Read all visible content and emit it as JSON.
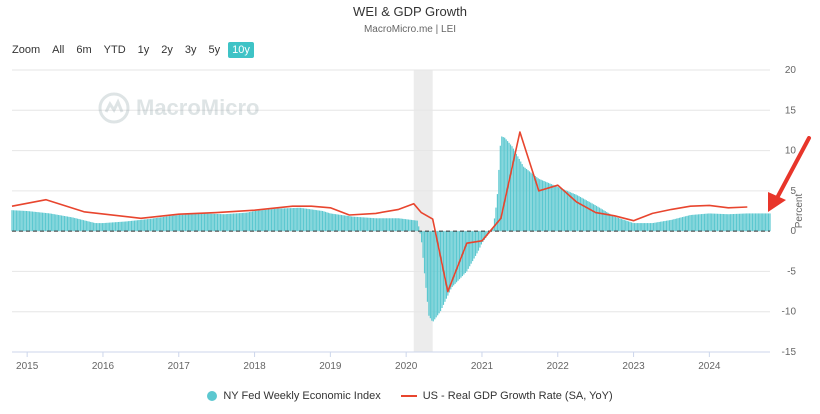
{
  "header": {
    "title": "WEI & GDP Growth",
    "subtitle": "MacroMicro.me | LEI"
  },
  "zoom": {
    "label": "Zoom",
    "options": [
      "All",
      "6m",
      "YTD",
      "1y",
      "2y",
      "3y",
      "5y",
      "10y"
    ],
    "selected": "10y"
  },
  "watermark": {
    "text": "MacroMicro"
  },
  "colors": {
    "wei": "#5cc8d0",
    "gdp": "#e8452e",
    "accent": "#3ec3c6",
    "recession": "#ececec",
    "arrow": "#e8352a"
  },
  "chart_data": {
    "type": "bar",
    "title": "WEI & GDP Growth",
    "ylabel": "Percent",
    "ylim": [
      -15,
      20
    ],
    "yticks": [
      20,
      15,
      10,
      5,
      0,
      -5,
      -10,
      -15
    ],
    "xlim": [
      2014.8,
      2024.8
    ],
    "xticks": [
      "2015",
      "2016",
      "2017",
      "2018",
      "2019",
      "2020",
      "2021",
      "2022",
      "2023",
      "2024"
    ],
    "shaded_region": [
      2020.1,
      2020.35
    ],
    "legend_position": "bottom",
    "series": [
      {
        "name": "NY Fed Weekly Economic Index",
        "type": "bar",
        "points": [
          [
            2014.8,
            2.6
          ],
          [
            2015.0,
            2.5
          ],
          [
            2015.3,
            2.2
          ],
          [
            2015.6,
            1.7
          ],
          [
            2015.9,
            1.0
          ],
          [
            2016.0,
            1.0
          ],
          [
            2016.3,
            1.2
          ],
          [
            2016.6,
            1.5
          ],
          [
            2016.9,
            1.9
          ],
          [
            2017.0,
            2.0
          ],
          [
            2017.3,
            2.2
          ],
          [
            2017.6,
            2.1
          ],
          [
            2017.9,
            2.3
          ],
          [
            2018.0,
            2.5
          ],
          [
            2018.3,
            2.8
          ],
          [
            2018.6,
            2.9
          ],
          [
            2018.9,
            2.5
          ],
          [
            2019.0,
            2.2
          ],
          [
            2019.3,
            1.8
          ],
          [
            2019.6,
            1.6
          ],
          [
            2019.9,
            1.6
          ],
          [
            2020.15,
            1.3
          ],
          [
            2020.2,
            -1.0
          ],
          [
            2020.25,
            -6.0
          ],
          [
            2020.3,
            -10.5
          ],
          [
            2020.35,
            -11.3
          ],
          [
            2020.45,
            -10.0
          ],
          [
            2020.6,
            -7.0
          ],
          [
            2020.8,
            -5.0
          ],
          [
            2020.95,
            -2.5
          ],
          [
            2021.0,
            -1.5
          ],
          [
            2021.15,
            0.5
          ],
          [
            2021.2,
            4.0
          ],
          [
            2021.25,
            11.8
          ],
          [
            2021.3,
            11.6
          ],
          [
            2021.4,
            10.5
          ],
          [
            2021.55,
            8.0
          ],
          [
            2021.75,
            6.5
          ],
          [
            2022.0,
            5.5
          ],
          [
            2022.25,
            4.5
          ],
          [
            2022.5,
            3.2
          ],
          [
            2022.75,
            1.8
          ],
          [
            2023.0,
            1.0
          ],
          [
            2023.25,
            1.0
          ],
          [
            2023.5,
            1.4
          ],
          [
            2023.75,
            2.0
          ],
          [
            2024.0,
            2.2
          ],
          [
            2024.25,
            2.1
          ],
          [
            2024.5,
            2.2
          ],
          [
            2024.8,
            2.2
          ]
        ]
      },
      {
        "name": "US - Real GDP Growth Rate (SA, YoY)",
        "type": "line",
        "points": [
          [
            2014.8,
            3.1
          ],
          [
            2015.25,
            3.9
          ],
          [
            2015.75,
            2.4
          ],
          [
            2016.5,
            1.6
          ],
          [
            2017.0,
            2.1
          ],
          [
            2017.5,
            2.3
          ],
          [
            2018.0,
            2.6
          ],
          [
            2018.5,
            3.1
          ],
          [
            2018.75,
            3.1
          ],
          [
            2019.0,
            2.9
          ],
          [
            2019.25,
            2.0
          ],
          [
            2019.6,
            2.2
          ],
          [
            2019.9,
            2.7
          ],
          [
            2020.1,
            3.4
          ],
          [
            2020.2,
            2.3
          ],
          [
            2020.35,
            1.5
          ],
          [
            2020.55,
            -7.5
          ],
          [
            2020.8,
            -1.5
          ],
          [
            2021.0,
            -1.2
          ],
          [
            2021.25,
            1.6
          ],
          [
            2021.5,
            12.3
          ],
          [
            2021.75,
            5.0
          ],
          [
            2022.0,
            5.7
          ],
          [
            2022.25,
            3.6
          ],
          [
            2022.5,
            2.3
          ],
          [
            2022.75,
            1.9
          ],
          [
            2023.0,
            1.3
          ],
          [
            2023.25,
            2.2
          ],
          [
            2023.5,
            2.7
          ],
          [
            2023.75,
            3.1
          ],
          [
            2024.0,
            3.2
          ],
          [
            2024.25,
            2.9
          ],
          [
            2024.5,
            3.0
          ]
        ]
      }
    ]
  }
}
